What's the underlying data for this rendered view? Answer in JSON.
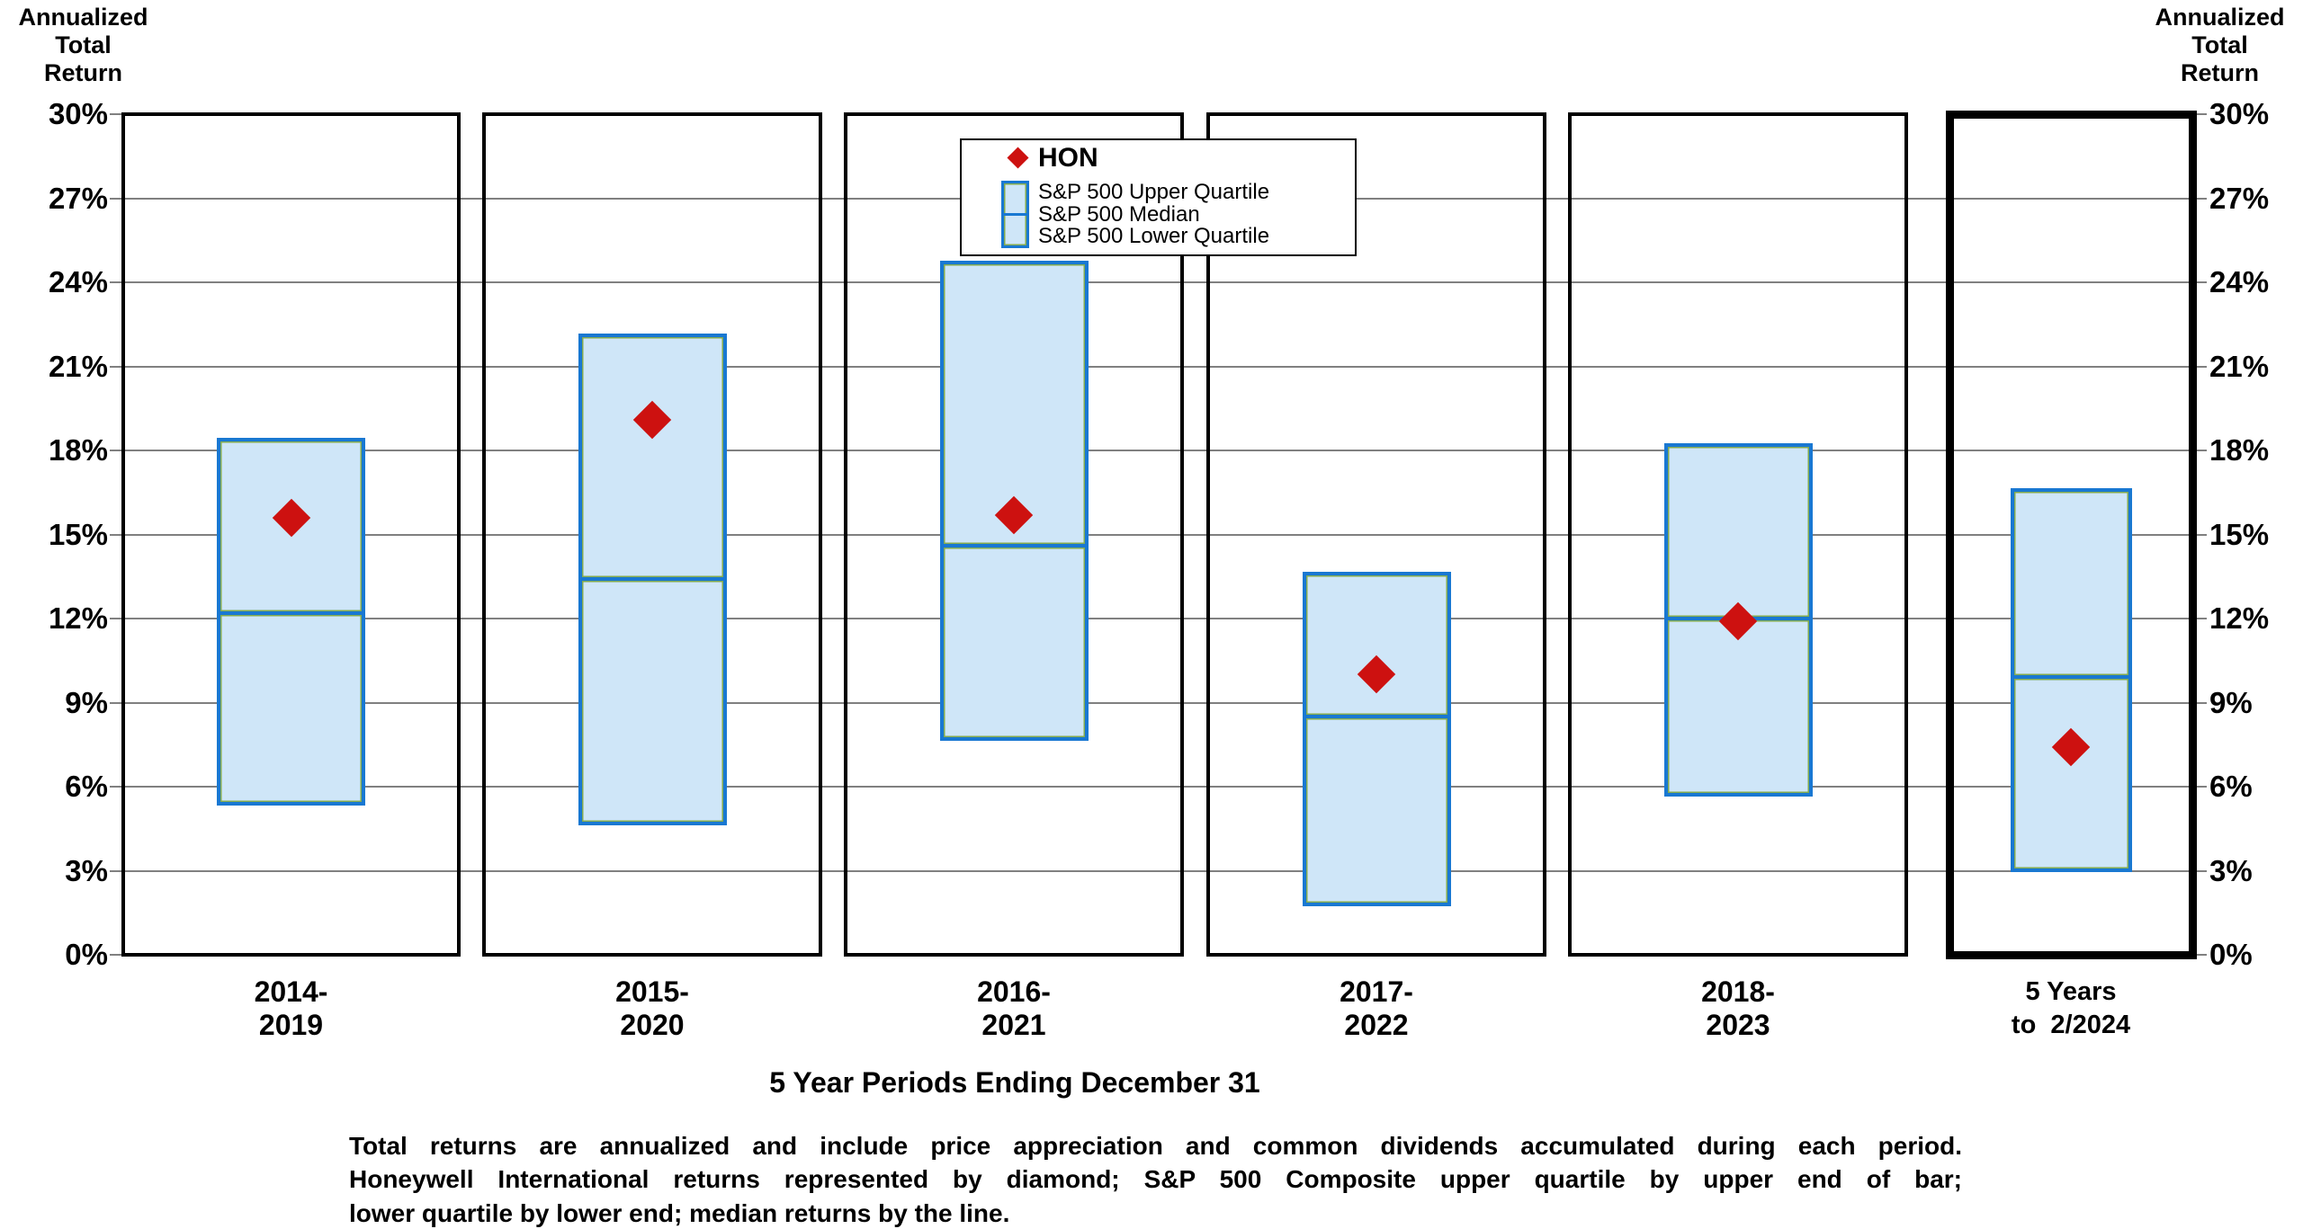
{
  "chart_data": {
    "type": "bar",
    "subtype": "floating-quartile-range-bars-with-point-marker",
    "title": "",
    "y_axis": {
      "label_lines": [
        "Annualized",
        "Total",
        "Return"
      ],
      "min": 0,
      "max": 30,
      "tick_step": 3,
      "tick_suffix": "%",
      "grid": true,
      "mirrored_right_axis": true
    },
    "x_axis": {
      "title": "5 Year Periods Ending December 31"
    },
    "categories": [
      [
        "2014-",
        "2019"
      ],
      [
        "2015-",
        "2020"
      ],
      [
        "2016-",
        "2021"
      ],
      [
        "2017-",
        "2022"
      ],
      [
        "2018-",
        "2023"
      ],
      [
        "5 Years",
        "to  2/2024"
      ]
    ],
    "series": [
      {
        "name": "S&P 500 Upper Quartile",
        "values": [
          18.4,
          22.1,
          24.7,
          13.6,
          18.2,
          16.6
        ]
      },
      {
        "name": "S&P 500 Median",
        "values": [
          12.2,
          13.4,
          14.6,
          8.5,
          12.0,
          9.9
        ]
      },
      {
        "name": "S&P 500 Lower Quartile",
        "values": [
          5.4,
          4.7,
          7.7,
          1.8,
          5.7,
          3.0
        ]
      },
      {
        "name": "HON",
        "values": [
          15.6,
          19.1,
          15.7,
          10.0,
          11.9,
          7.4
        ]
      }
    ],
    "legend": {
      "position": "top-center",
      "hon_label": "HON",
      "marker": "red-diamond"
    },
    "footnote_lines": [
      "Total returns are annualized and include price appreciation and common dividends accumulated during each period.",
      "Honeywell International returns represented by diamond; S&P 500 Composite upper quartile by upper end of bar;",
      "lower quartile by lower end; median returns by the line."
    ],
    "colors": {
      "bar_fill": "#cfe6f8",
      "bar_border": "#1978d2",
      "bar_inner_edge": "#82aa50",
      "hon_diamond": "#cd1110",
      "gridline": "#808080",
      "panel_border": "#000000",
      "text": "#000000",
      "legend_background": "#ffffff"
    },
    "highlight_last_period_panel": true
  }
}
